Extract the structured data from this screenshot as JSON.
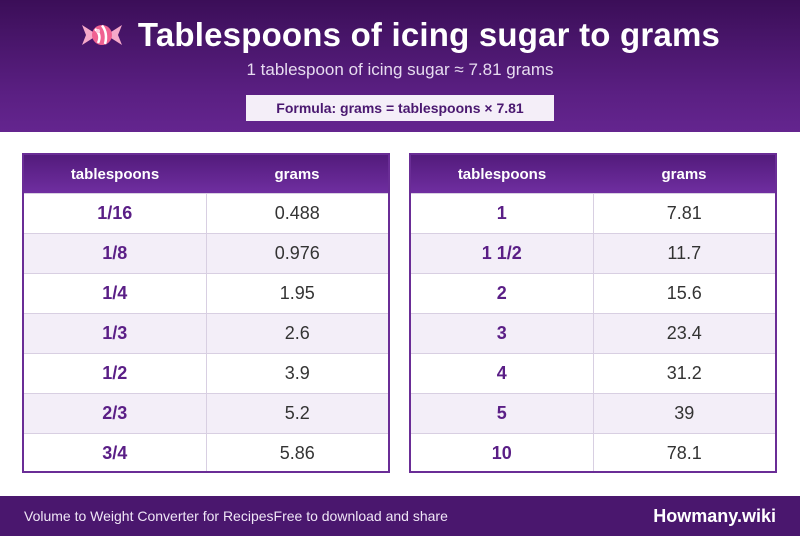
{
  "header": {
    "icon": "candy-icon",
    "title": "Tablespoons of icing sugar to grams",
    "subtitle": "1 tablespoon of icing sugar ≈ 7.81 grams",
    "formula": "Formula: grams = tablespoons × 7.81"
  },
  "tables": [
    {
      "columns": [
        "tablespoons",
        "grams"
      ],
      "rows": [
        [
          "1/16",
          "0.488"
        ],
        [
          "1/8",
          "0.976"
        ],
        [
          "1/4",
          "1.95"
        ],
        [
          "1/3",
          "2.6"
        ],
        [
          "1/2",
          "3.9"
        ],
        [
          "2/3",
          "5.2"
        ],
        [
          "3/4",
          "5.86"
        ]
      ]
    },
    {
      "columns": [
        "tablespoons",
        "grams"
      ],
      "rows": [
        [
          "1",
          "7.81"
        ],
        [
          "1 1/2",
          "11.7"
        ],
        [
          "2",
          "15.6"
        ],
        [
          "3",
          "23.4"
        ],
        [
          "4",
          "31.2"
        ],
        [
          "5",
          "39"
        ],
        [
          "10",
          "78.1"
        ]
      ]
    }
  ],
  "footer": {
    "left_text": "Volume to Weight Converter for Recipes",
    "left_text_2": "Free to download and share",
    "brand": "Howmany.wiki"
  },
  "colors": {
    "header_purple": "#5a1f82",
    "accent_purple": "#6a2d96",
    "row_alt": "#f3eef8",
    "footer_purple": "#4a176e"
  }
}
